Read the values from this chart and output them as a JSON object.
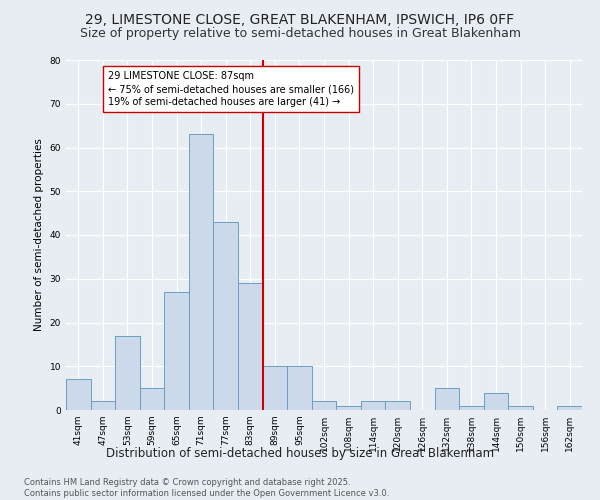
{
  "title": "29, LIMESTONE CLOSE, GREAT BLAKENHAM, IPSWICH, IP6 0FF",
  "subtitle": "Size of property relative to semi-detached houses in Great Blakenham",
  "xlabel": "Distribution of semi-detached houses by size in Great Blakenham",
  "ylabel": "Number of semi-detached properties",
  "categories": [
    "41sqm",
    "47sqm",
    "53sqm",
    "59sqm",
    "65sqm",
    "71sqm",
    "77sqm",
    "83sqm",
    "89sqm",
    "95sqm",
    "102sqm",
    "108sqm",
    "114sqm",
    "120sqm",
    "126sqm",
    "132sqm",
    "138sqm",
    "144sqm",
    "150sqm",
    "156sqm",
    "162sqm"
  ],
  "values": [
    7,
    2,
    17,
    5,
    27,
    63,
    43,
    29,
    10,
    10,
    2,
    1,
    2,
    2,
    0,
    5,
    1,
    4,
    1,
    0,
    1
  ],
  "bar_color": "#ccd9ea",
  "bar_edge_color": "#6a9fc0",
  "bar_linewidth": 0.7,
  "pct_smaller": 75,
  "n_smaller": 166,
  "pct_larger": 19,
  "n_larger": 41,
  "vline_color": "#cc0000",
  "annotation_box_color": "#cc0000",
  "ylim": [
    0,
    80
  ],
  "yticks": [
    0,
    10,
    20,
    30,
    40,
    50,
    60,
    70,
    80
  ],
  "bg_color": "#e8edf4",
  "plot_bg_color": "#e8edf4",
  "grid_color": "#ffffff",
  "footer": "Contains HM Land Registry data © Crown copyright and database right 2025.\nContains public sector information licensed under the Open Government Licence v3.0.",
  "title_fontsize": 10,
  "subtitle_fontsize": 9,
  "xlabel_fontsize": 8.5,
  "ylabel_fontsize": 7.5,
  "tick_fontsize": 6.5,
  "annotation_fontsize": 7,
  "footer_fontsize": 6
}
